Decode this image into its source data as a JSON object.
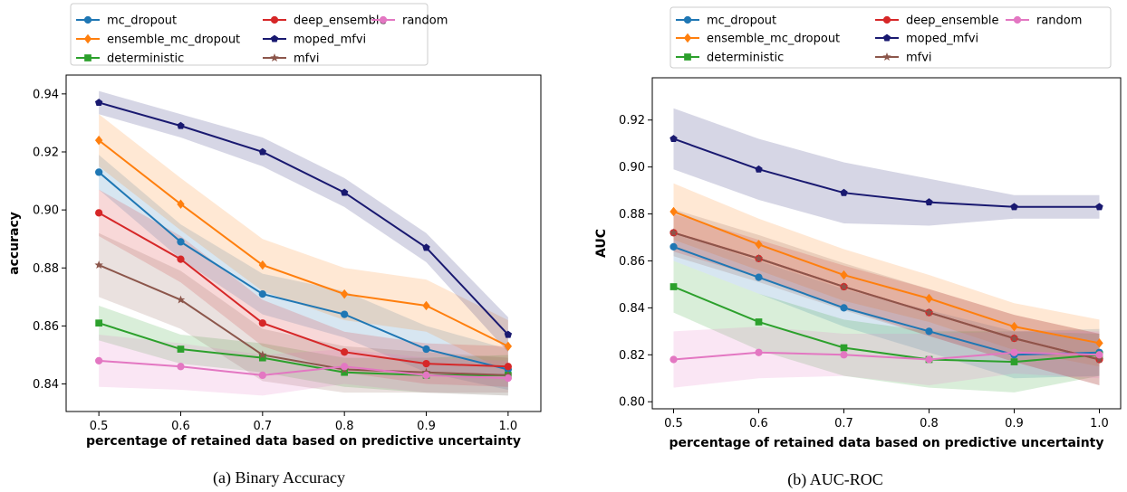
{
  "series_styles": {
    "mc_dropout": {
      "color": "#1f77b4",
      "marker": "circle"
    },
    "ensemble_mc_dropout": {
      "color": "#ff7f0e",
      "marker": "diamond"
    },
    "deterministic": {
      "color": "#2ca02c",
      "marker": "square"
    },
    "deep_ensemble": {
      "color": "#d62728",
      "marker": "circle"
    },
    "moped_mfvi": {
      "color": "#191970",
      "marker": "pentagon"
    },
    "mfvi": {
      "color": "#8c564b",
      "marker": "star"
    },
    "random": {
      "color": "#e377c2",
      "marker": "circle"
    }
  },
  "legend_order": [
    "mc_dropout",
    "ensemble_mc_dropout",
    "deterministic",
    "deep_ensemble",
    "moped_mfvi",
    "mfvi",
    "random"
  ],
  "chart_data": [
    {
      "type": "line",
      "caption": "(a) Binary Accuracy",
      "xlabel": "percentage of retained data based on predictive uncertainty",
      "ylabel": "accuracy",
      "xlim": [
        0.46,
        1.04
      ],
      "ylim": [
        0.8305,
        0.9465
      ],
      "xticks": [
        "0.5",
        "0.6",
        "0.7",
        "0.8",
        "0.9",
        "1.0"
      ],
      "yticks": [
        "0.84",
        "0.86",
        "0.88",
        "0.90",
        "0.92",
        "0.94"
      ],
      "legend_position": "top",
      "x": [
        0.5,
        0.6,
        0.7,
        0.8,
        0.9,
        1.0
      ],
      "series": [
        {
          "name": "mc_dropout",
          "values": [
            0.913,
            0.889,
            0.871,
            0.864,
            0.852,
            0.845
          ],
          "band": [
            0.006,
            0.006,
            0.007,
            0.008,
            0.008,
            0.007
          ]
        },
        {
          "name": "ensemble_mc_dropout",
          "values": [
            0.924,
            0.902,
            0.881,
            0.871,
            0.867,
            0.853
          ],
          "band": [
            0.009,
            0.009,
            0.009,
            0.009,
            0.009,
            0.009
          ]
        },
        {
          "name": "deterministic",
          "values": [
            0.861,
            0.852,
            0.849,
            0.844,
            0.843,
            0.843
          ],
          "band": [
            0.006,
            0.005,
            0.005,
            0.005,
            0.006,
            0.007
          ]
        },
        {
          "name": "deep_ensemble",
          "values": [
            0.899,
            0.883,
            0.861,
            0.851,
            0.847,
            0.846
          ],
          "band": [
            0.008,
            0.008,
            0.008,
            0.007,
            0.007,
            0.007
          ]
        },
        {
          "name": "moped_mfvi",
          "values": [
            0.937,
            0.929,
            0.92,
            0.906,
            0.887,
            0.857
          ],
          "band": [
            0.004,
            0.004,
            0.005,
            0.005,
            0.005,
            0.006
          ]
        },
        {
          "name": "mfvi",
          "values": [
            0.881,
            0.869,
            0.85,
            0.845,
            0.844,
            0.843
          ],
          "band": [
            0.011,
            0.01,
            0.009,
            0.008,
            0.007,
            0.006
          ]
        },
        {
          "name": "random",
          "values": [
            0.848,
            0.846,
            0.843,
            0.846,
            0.843,
            0.842
          ],
          "band": [
            0.009,
            0.008,
            0.007,
            0.006,
            0.006,
            0.006
          ]
        }
      ]
    },
    {
      "type": "line",
      "caption": "(b) AUC-ROC",
      "xlabel": "percentage of retained data based on predictive uncertainty",
      "ylabel": "AUC",
      "xlim": [
        0.475,
        1.025
      ],
      "ylim": [
        0.797,
        0.938
      ],
      "xticks": [
        "0.5",
        "0.6",
        "0.7",
        "0.8",
        "0.9",
        "1.0"
      ],
      "yticks": [
        "0.80",
        "0.82",
        "0.84",
        "0.86",
        "0.88",
        "0.90",
        "0.92"
      ],
      "legend_position": "top",
      "x": [
        0.5,
        0.6,
        0.7,
        0.8,
        0.9,
        1.0
      ],
      "series": [
        {
          "name": "mc_dropout",
          "values": [
            0.866,
            0.853,
            0.84,
            0.83,
            0.82,
            0.821
          ],
          "band": [
            0.006,
            0.007,
            0.008,
            0.009,
            0.01,
            0.01
          ]
        },
        {
          "name": "ensemble_mc_dropout",
          "values": [
            0.881,
            0.867,
            0.854,
            0.844,
            0.832,
            0.825
          ],
          "band": [
            0.012,
            0.011,
            0.011,
            0.01,
            0.01,
            0.01
          ]
        },
        {
          "name": "deterministic",
          "values": [
            0.849,
            0.834,
            0.823,
            0.818,
            0.817,
            0.82
          ],
          "band": [
            0.011,
            0.012,
            0.012,
            0.012,
            0.013,
            0.009
          ]
        },
        {
          "name": "deep_ensemble",
          "values": [
            0.872,
            0.861,
            0.849,
            0.838,
            0.827,
            0.818
          ],
          "band": [
            0.008,
            0.008,
            0.009,
            0.01,
            0.01,
            0.011
          ]
        },
        {
          "name": "moped_mfvi",
          "values": [
            0.912,
            0.899,
            0.889,
            0.885,
            0.883,
            0.883
          ],
          "band": [
            0.013,
            0.013,
            0.013,
            0.01,
            0.005,
            0.005
          ]
        },
        {
          "name": "mfvi",
          "values": [
            0.872,
            0.861,
            0.849,
            0.838,
            0.827,
            0.818
          ],
          "band": [
            0.01,
            0.01,
            0.01,
            0.01,
            0.01,
            0.011
          ]
        },
        {
          "name": "random",
          "values": [
            0.818,
            0.821,
            0.82,
            0.818,
            0.821,
            0.82
          ],
          "band": [
            0.012,
            0.011,
            0.009,
            0.011,
            0.009,
            0.01
          ]
        }
      ]
    }
  ]
}
